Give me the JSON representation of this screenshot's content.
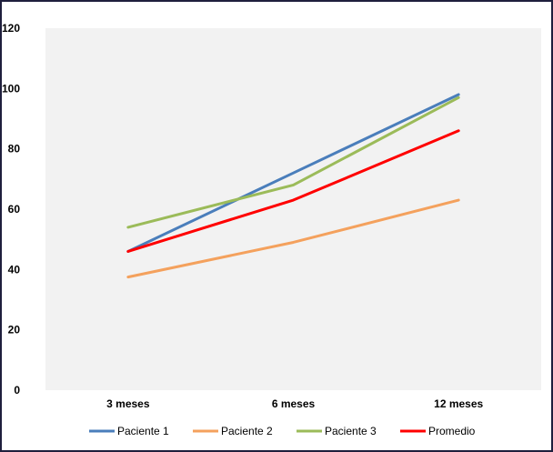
{
  "chart_data": {
    "type": "line",
    "title": "",
    "xlabel": "",
    "ylabel": "",
    "categories": [
      "3 meses",
      "6 meses",
      "12 meses"
    ],
    "ylim": [
      0,
      120
    ],
    "yticks": [
      0,
      20,
      40,
      60,
      80,
      100,
      120
    ],
    "grid": false,
    "legend_position": "bottom",
    "plot_background": "#f2f2f2",
    "series": [
      {
        "name": "Paciente 1",
        "color": "#4a7ebb",
        "values": [
          46,
          72,
          98
        ]
      },
      {
        "name": "Paciente 2",
        "color": "#f4a15d",
        "values": [
          37.5,
          49,
          63
        ]
      },
      {
        "name": "Paciente 3",
        "color": "#9bbb59",
        "values": [
          54,
          68,
          97
        ]
      },
      {
        "name": "Promedio",
        "color": "#ff0000",
        "values": [
          46,
          63,
          86
        ]
      }
    ]
  }
}
